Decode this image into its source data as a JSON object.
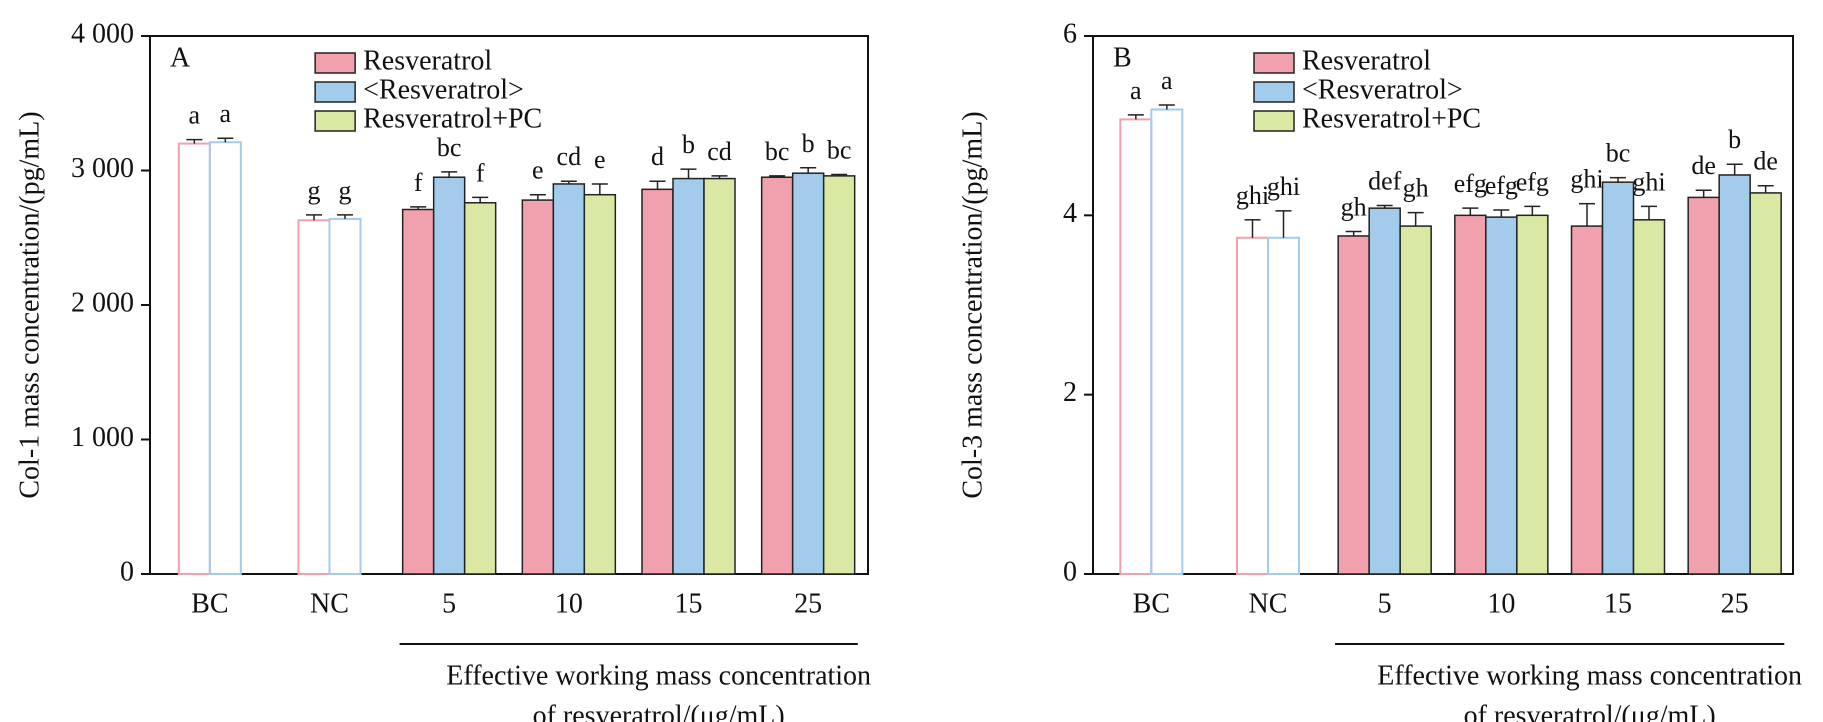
{
  "chart_data": [
    {
      "type": "bar",
      "panel": "A",
      "ylabel": "Col-1 mass concentration/(pg/mL)",
      "xlabel": [
        "Effective working mass concentration",
        "of resveratrol/(μg/mL)"
      ],
      "categories": [
        "BC",
        "NC",
        "5",
        "10",
        "15",
        "25"
      ],
      "ylim": [
        0,
        4000
      ],
      "yticks": [
        0,
        {
          "value": 1000,
          "label": "1 000"
        },
        {
          "value": 2000,
          "label": "2 000"
        },
        {
          "value": 3000,
          "label": "3 000"
        },
        {
          "value": 4000,
          "label": "4 000"
        }
      ],
      "legend": "upper center",
      "series": [
        {
          "name": "Resveratrol",
          "color": "#f0a1ad",
          "values": [
            3200,
            2630,
            2710,
            2780,
            2860,
            2950
          ],
          "errors": [
            30,
            40,
            20,
            40,
            60,
            10
          ],
          "letters": [
            "a",
            "g",
            "f",
            "e",
            "d",
            "bc"
          ]
        },
        {
          "name": "<Resveratrol>",
          "color": "#a3cbec",
          "values": [
            3210,
            2640,
            2950,
            2900,
            2940,
            2980
          ],
          "errors": [
            30,
            30,
            40,
            20,
            70,
            40
          ],
          "letters": [
            "a",
            "g",
            "bc",
            "cd",
            "b",
            "b"
          ]
        },
        {
          "name": "Resveratrol+PC",
          "color": "#d9e9a4",
          "values": [
            null,
            null,
            2760,
            2820,
            2940,
            2960
          ],
          "errors": [
            null,
            null,
            40,
            80,
            20,
            10
          ],
          "letters": [
            null,
            null,
            "f",
            "e",
            "cd",
            "bc"
          ]
        }
      ]
    },
    {
      "type": "bar",
      "panel": "B",
      "ylabel": "Col-3 mass concentration/(pg/mL)",
      "xlabel": [
        "Effective working mass concentration",
        "of resveratrol/(μg/mL)"
      ],
      "categories": [
        "BC",
        "NC",
        "5",
        "10",
        "15",
        "25"
      ],
      "ylim": [
        0,
        6
      ],
      "yticks": [
        0,
        2,
        4,
        6
      ],
      "legend": "upper center",
      "series": [
        {
          "name": "Resveratrol",
          "color": "#f0a1ad",
          "values": [
            5.07,
            3.75,
            3.77,
            4.0,
            3.88,
            4.2
          ],
          "errors": [
            0.05,
            0.2,
            0.05,
            0.08,
            0.25,
            0.08
          ],
          "letters": [
            "a",
            "ghi",
            "gh",
            "efg",
            "ghi",
            "de"
          ]
        },
        {
          "name": "<Resveratrol>",
          "color": "#a3cbec",
          "values": [
            5.18,
            3.75,
            4.08,
            3.98,
            4.37,
            4.45
          ],
          "errors": [
            0.05,
            0.3,
            0.03,
            0.08,
            0.05,
            0.12
          ],
          "letters": [
            "a",
            "ghi",
            "def",
            "efg",
            "bc",
            "b"
          ]
        },
        {
          "name": "Resveratrol+PC",
          "color": "#d9e9a4",
          "values": [
            null,
            null,
            3.88,
            4.0,
            3.95,
            4.25
          ],
          "errors": [
            null,
            null,
            0.15,
            0.1,
            0.15,
            0.08
          ],
          "letters": [
            null,
            null,
            "gh",
            "efg",
            "ghi",
            "de"
          ]
        }
      ]
    }
  ]
}
